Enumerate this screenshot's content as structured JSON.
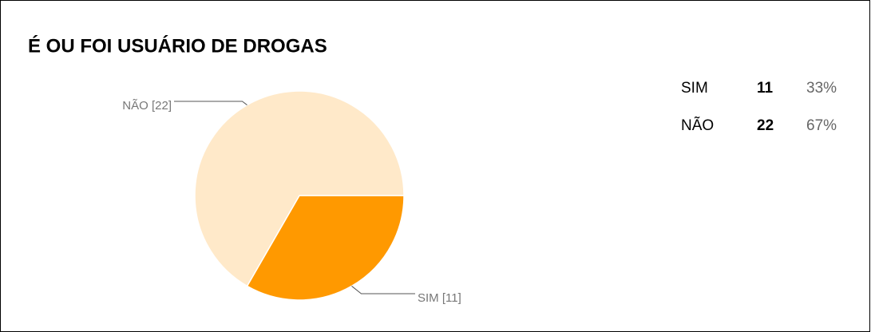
{
  "chart_data": {
    "type": "pie",
    "title": "É OU FOI USUÁRIO DE DROGAS",
    "categories": [
      "SIM",
      "NÃO"
    ],
    "values": [
      11,
      22
    ],
    "value_labels": [
      "SIM [11]",
      "NÃO [22]"
    ],
    "percent_labels": [
      "33%",
      "67%"
    ],
    "colors": [
      "#ff9900",
      "#ffe9c9"
    ]
  }
}
